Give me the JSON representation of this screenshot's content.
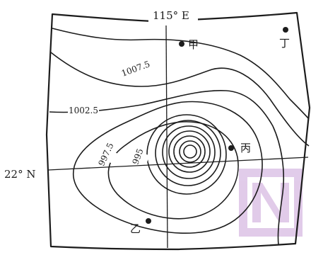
{
  "grid": {
    "longitude_label": "115° E",
    "latitude_label": "22° N"
  },
  "isobars": {
    "labels": [
      "1007.5",
      "1002.5",
      "997.5",
      "995"
    ]
  },
  "places": [
    {
      "label": "甲"
    },
    {
      "label": "乙"
    },
    {
      "label": "丙"
    },
    {
      "label": "丁"
    }
  ],
  "watermark": {
    "color": "#c9a2d8"
  }
}
